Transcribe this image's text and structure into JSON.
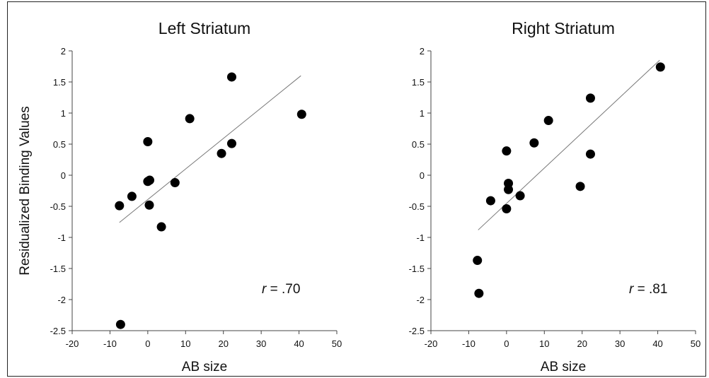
{
  "chart_data": [
    {
      "type": "scatter",
      "title": "Left Striatum",
      "xlabel": "AB size",
      "ylabel": "Residualized Binding Values",
      "xlim": [
        -20,
        50
      ],
      "ylim": [
        -2.5,
        2
      ],
      "xticks": [
        "-20",
        "-10",
        "0",
        "10",
        "20",
        "30",
        "40",
        "50"
      ],
      "yticks": [
        "-2.5",
        "-2",
        "-1.5",
        "-1",
        "-0.5",
        "0",
        "0.5",
        "1",
        "1.5",
        "2"
      ],
      "points": [
        {
          "x": -7.5,
          "y": -0.49
        },
        {
          "x": -7.2,
          "y": -2.4
        },
        {
          "x": -4.2,
          "y": -0.34
        },
        {
          "x": 0.0,
          "y": 0.54
        },
        {
          "x": 0.0,
          "y": -0.1
        },
        {
          "x": 0.5,
          "y": -0.08
        },
        {
          "x": 0.4,
          "y": -0.48
        },
        {
          "x": 3.6,
          "y": -0.83
        },
        {
          "x": 7.2,
          "y": -0.12
        },
        {
          "x": 11.1,
          "y": 0.91
        },
        {
          "x": 19.5,
          "y": 0.35
        },
        {
          "x": 22.2,
          "y": 0.51
        },
        {
          "x": 22.2,
          "y": 1.58
        },
        {
          "x": 40.7,
          "y": 0.98
        }
      ],
      "fit_line": [
        {
          "x": -7.5,
          "y": -0.76
        },
        {
          "x": 40.5,
          "y": 1.6
        }
      ],
      "annotation": {
        "r_symbol": "r",
        "r_value": " = .70"
      }
    },
    {
      "type": "scatter",
      "title": "Right Striatum",
      "xlabel": "AB size",
      "ylabel": "",
      "xlim": [
        -20,
        50
      ],
      "ylim": [
        -2.5,
        2
      ],
      "xticks": [
        "-20",
        "-10",
        "0",
        "10",
        "20",
        "30",
        "40",
        "50"
      ],
      "yticks": [
        "-2.5",
        "-2",
        "-1.5",
        "-1",
        "-0.5",
        "0",
        "0.5",
        "1",
        "1.5",
        "2"
      ],
      "points": [
        {
          "x": -7.7,
          "y": -1.37
        },
        {
          "x": -7.3,
          "y": -1.9
        },
        {
          "x": -4.2,
          "y": -0.41
        },
        {
          "x": 0.0,
          "y": 0.39
        },
        {
          "x": 0.5,
          "y": -0.23
        },
        {
          "x": 0.5,
          "y": -0.13
        },
        {
          "x": 0.0,
          "y": -0.54
        },
        {
          "x": 3.6,
          "y": -0.33
        },
        {
          "x": 7.3,
          "y": 0.52
        },
        {
          "x": 11.1,
          "y": 0.88
        },
        {
          "x": 19.5,
          "y": -0.18
        },
        {
          "x": 22.2,
          "y": 0.34
        },
        {
          "x": 22.2,
          "y": 1.24
        },
        {
          "x": 40.7,
          "y": 1.74
        }
      ],
      "fit_line": [
        {
          "x": -7.5,
          "y": -0.88
        },
        {
          "x": 40.5,
          "y": 1.85
        }
      ],
      "annotation": {
        "r_symbol": "r",
        "r_value": " = .81"
      }
    }
  ]
}
